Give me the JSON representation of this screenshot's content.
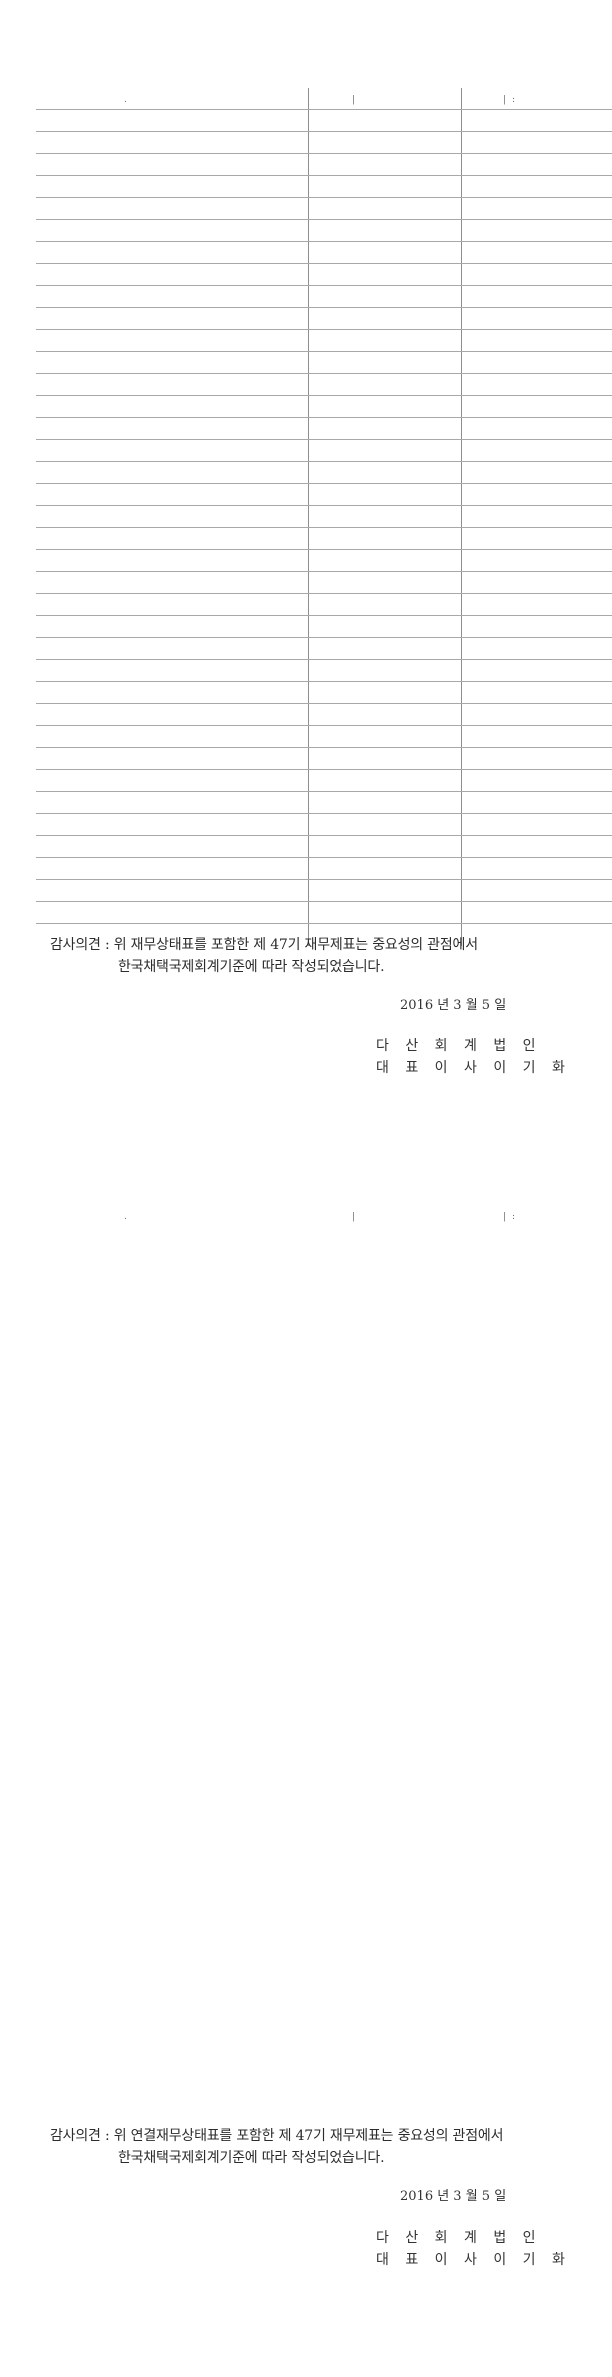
{
  "page1": {
    "table": {
      "header": {
        "col1": ".",
        "col2": "|",
        "col3": "|",
        "col4": ":"
      }
    },
    "opinion": {
      "line1": "감사의견 : 위 재무상태표를 포함한 제 47기 재무제표는 중요성의 관점에서",
      "line2": "한국채택국제회계기준에 따라 작성되었습니다."
    },
    "date": "2016 년 3 월 5 일",
    "signature": {
      "line1": "다 산 회 계 법 인",
      "line2": "대 표 이 사 이 기 화"
    }
  },
  "page2": {
    "table": {
      "header": {
        "col1": ".",
        "col2": "|",
        "col3": "|",
        "col4": ":"
      }
    },
    "opinion": {
      "line1": "감사의견 : 위 연결재무상태표를 포함한 제 47기 재무제표는 중요성의 관점에서",
      "line2": "한국채택국제회계기준에 따라 작성되었습니다."
    },
    "date": "2016 년 3 월 5 일",
    "signature": {
      "line1": "다 산 회 계 법 인",
      "line2": "대 표 이 사 이 기 화"
    }
  }
}
